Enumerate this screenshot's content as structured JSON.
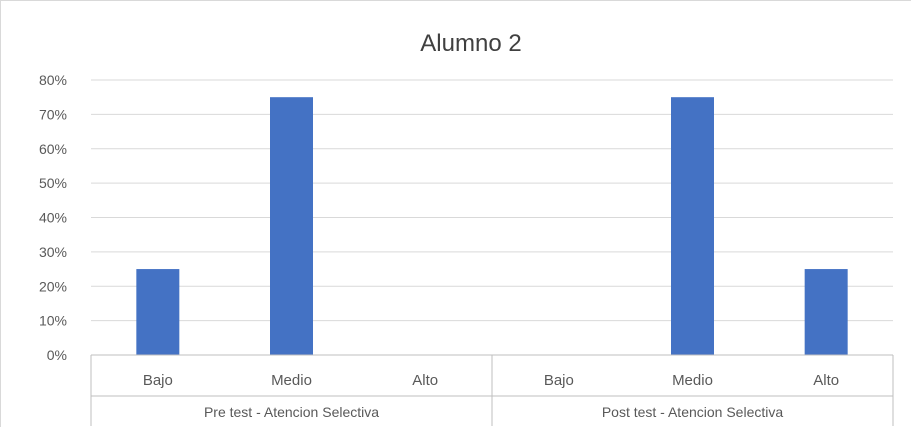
{
  "chart_data": {
    "type": "bar",
    "title": "Alumno 2",
    "xlabel": "",
    "ylabel": "",
    "ylim": [
      0,
      0.8
    ],
    "yticks": [
      0,
      0.1,
      0.2,
      0.3,
      0.4,
      0.5,
      0.6,
      0.7,
      0.8
    ],
    "ytick_labels": [
      "0%",
      "10%",
      "20%",
      "30%",
      "40%",
      "50%",
      "60%",
      "70%",
      "80%"
    ],
    "grid": true,
    "legend": "none",
    "bar_color": "#4472c4",
    "groups": [
      {
        "label": "Pre test - Atencion Selectiva",
        "categories": [
          "Bajo",
          "Medio",
          "Alto"
        ],
        "values": [
          0.25,
          0.75,
          0
        ]
      },
      {
        "label": "Post test -  Atencion Selectiva",
        "categories": [
          "Bajo",
          "Medio",
          "Alto"
        ],
        "values": [
          0,
          0.75,
          0.25
        ]
      }
    ]
  }
}
